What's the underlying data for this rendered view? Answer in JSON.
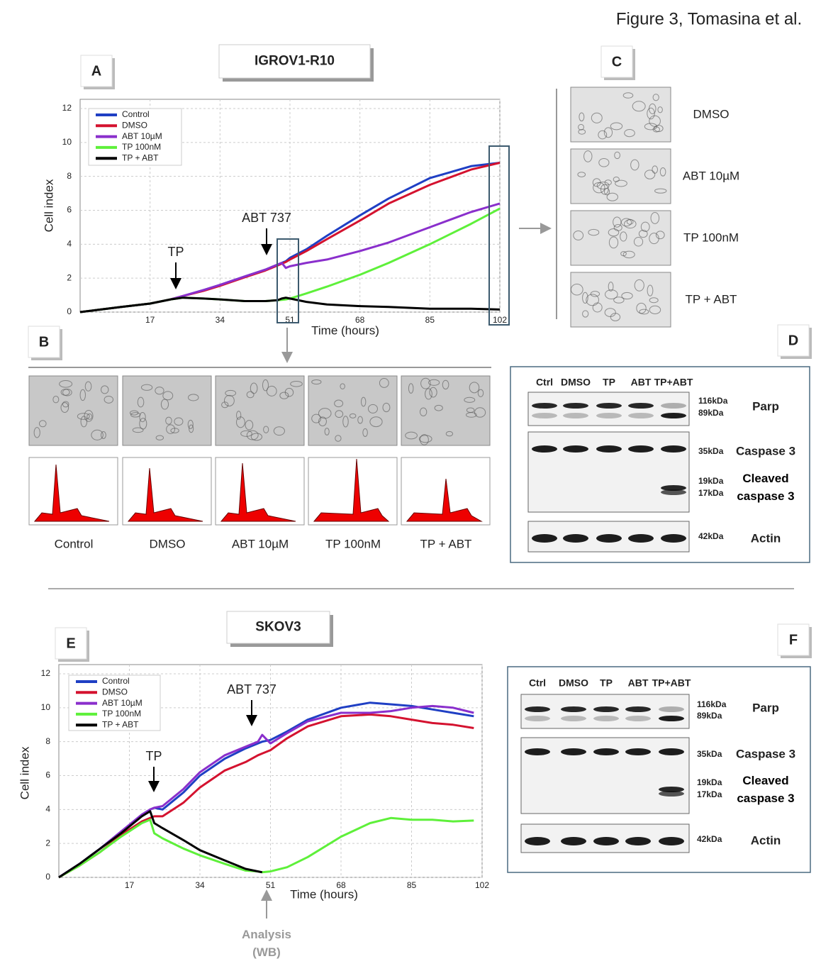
{
  "figure_title": "Figure 3, Tomasina et al.",
  "panel_labels": [
    "A",
    "B",
    "C",
    "D",
    "E",
    "F"
  ],
  "chart_data": [
    {
      "type": "line",
      "title": "IGROV1-R10",
      "x_label": "Time (hours)",
      "y_label": "Cell index",
      "xlim": [
        0,
        102
      ],
      "ylim": [
        0,
        12
      ],
      "xticks": [
        17,
        34,
        51,
        68,
        85,
        102
      ],
      "yticks": [
        0,
        2,
        4,
        6,
        8,
        10,
        12
      ],
      "grid": true,
      "legend": "upper left",
      "annotations": [
        "TP",
        "ABT 737"
      ],
      "x": [
        0,
        5,
        10,
        17,
        22,
        25,
        30,
        34,
        40,
        45,
        48,
        49,
        50,
        51,
        55,
        60,
        68,
        75,
        85,
        95,
        102
      ],
      "series": [
        {
          "name": "Control",
          "color": "#1f3fc4",
          "values": [
            0,
            0.15,
            0.3,
            0.5,
            0.75,
            0.95,
            1.3,
            1.6,
            2.1,
            2.5,
            2.8,
            2.9,
            3.0,
            3.2,
            3.7,
            4.5,
            5.7,
            6.7,
            7.9,
            8.6,
            8.8
          ]
        },
        {
          "name": "DMSO",
          "color": "#d4122f",
          "values": [
            0,
            0.15,
            0.3,
            0.5,
            0.75,
            0.95,
            1.25,
            1.55,
            2.05,
            2.45,
            2.75,
            2.85,
            2.95,
            3.1,
            3.6,
            4.3,
            5.4,
            6.4,
            7.5,
            8.4,
            8.8
          ]
        },
        {
          "name": "ABT 10µM",
          "color": "#8a2fcc",
          "values": [
            0,
            0.15,
            0.3,
            0.5,
            0.75,
            0.95,
            1.3,
            1.6,
            2.1,
            2.5,
            2.8,
            2.9,
            2.6,
            2.7,
            2.9,
            3.1,
            3.6,
            4.1,
            5.0,
            5.9,
            6.4
          ]
        },
        {
          "name": "TP 100nM",
          "color": "#5ef03a",
          "values": [
            0,
            0.15,
            0.3,
            0.5,
            0.75,
            0.85,
            0.8,
            0.75,
            0.65,
            0.65,
            0.7,
            0.72,
            0.75,
            0.8,
            1.1,
            1.5,
            2.2,
            2.9,
            4.0,
            5.2,
            6.1
          ]
        },
        {
          "name": "TP + ABT",
          "color": "#000000",
          "values": [
            0,
            0.15,
            0.3,
            0.5,
            0.75,
            0.85,
            0.8,
            0.75,
            0.65,
            0.65,
            0.7,
            0.8,
            0.85,
            0.8,
            0.6,
            0.45,
            0.35,
            0.3,
            0.2,
            0.2,
            0.15
          ]
        }
      ]
    },
    {
      "type": "line",
      "title": "SKOV3",
      "x_label": "Time (hours)",
      "y_label": "Cell index",
      "xlim": [
        0,
        102
      ],
      "ylim": [
        0,
        12
      ],
      "xticks": [
        17,
        34,
        51,
        68,
        85,
        102
      ],
      "yticks": [
        0,
        2,
        4,
        6,
        8,
        10,
        12
      ],
      "grid": true,
      "legend": "upper left",
      "annotations": [
        "TP",
        "ABT 737",
        "Analysis (WB)"
      ],
      "x": [
        0,
        5,
        10,
        15,
        20,
        22,
        23,
        25,
        30,
        34,
        40,
        45,
        48,
        49,
        51,
        55,
        60,
        68,
        75,
        80,
        85,
        90,
        95,
        100
      ],
      "series": [
        {
          "name": "Control",
          "color": "#1f3fc4",
          "values": [
            0,
            0.8,
            1.7,
            2.7,
            3.7,
            4.0,
            4.1,
            4.0,
            5.0,
            6.0,
            7.0,
            7.6,
            7.9,
            8.0,
            8.1,
            8.6,
            9.3,
            10.0,
            10.3,
            10.2,
            10.1,
            9.9,
            9.7,
            9.5
          ]
        },
        {
          "name": "DMSO",
          "color": "#d4122f",
          "values": [
            0,
            0.7,
            1.5,
            2.5,
            3.3,
            3.5,
            3.6,
            3.6,
            4.4,
            5.3,
            6.3,
            6.8,
            7.2,
            7.3,
            7.5,
            8.2,
            8.9,
            9.5,
            9.6,
            9.5,
            9.3,
            9.1,
            9.0,
            8.8
          ]
        },
        {
          "name": "ABT 10µM",
          "color": "#8a2fcc",
          "values": [
            0,
            0.8,
            1.7,
            2.7,
            3.7,
            4.0,
            4.1,
            4.2,
            5.2,
            6.2,
            7.2,
            7.7,
            8.0,
            8.4,
            7.9,
            8.5,
            9.2,
            9.7,
            9.7,
            9.8,
            10.0,
            10.1,
            10.0,
            9.7
          ]
        },
        {
          "name": "TP 100nM",
          "color": "#5ef03a",
          "values": [
            0,
            0.7,
            1.5,
            2.4,
            3.2,
            3.4,
            2.6,
            2.3,
            1.7,
            1.3,
            0.8,
            0.4,
            0.35,
            0.3,
            0.35,
            0.6,
            1.2,
            2.4,
            3.2,
            3.5,
            3.4,
            3.4,
            3.3,
            3.35
          ]
        },
        {
          "name": "TP + ABT",
          "color": "#000000",
          "values": [
            0,
            0.8,
            1.7,
            2.6,
            3.6,
            3.9,
            3.2,
            2.9,
            2.2,
            1.6,
            1.0,
            0.5,
            0.35,
            0.3,
            null,
            null,
            null,
            null,
            null,
            null,
            null,
            null,
            null,
            null
          ]
        }
      ]
    }
  ],
  "panel_b": {
    "labels": [
      "Control",
      "DMSO",
      "ABT 10µM",
      "TP 100nM",
      "TP + ABT"
    ]
  },
  "panel_c": {
    "labels": [
      "DMSO",
      "ABT 10µM",
      "TP 100nM",
      "TP + ABT"
    ]
  },
  "western_blots": [
    {
      "lanes": [
        "Ctrl",
        "DMSO",
        "TP",
        "ABT",
        "TP+ABT"
      ],
      "markers": [
        "116kDa",
        "89kDa",
        "35kDa",
        "19kDa",
        "17kDa",
        "42kDa"
      ],
      "proteins": [
        "Parp",
        "Caspase 3",
        "Cleaved caspase 3",
        "Actin"
      ]
    },
    {
      "lanes": [
        "Ctrl",
        "DMSO",
        "TP",
        "ABT",
        "TP+ABT"
      ],
      "markers": [
        "116kDa",
        "89kDa",
        "35kDa",
        "19kDa",
        "17kDa",
        "42kDa"
      ],
      "proteins": [
        "Parp",
        "Caspase 3",
        "Cleaved caspase 3",
        "Actin"
      ]
    }
  ]
}
